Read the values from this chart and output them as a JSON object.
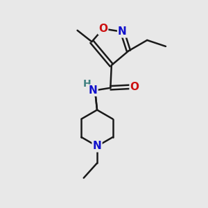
{
  "bg_color": "#e8e8e8",
  "bond_color": "#1a1a1a",
  "bond_width": 1.8,
  "atom_colors": {
    "N": "#1010cc",
    "O": "#cc1010",
    "H": "#408080",
    "C": "#1a1a1a"
  },
  "font_size_atom": 11,
  "figsize": [
    3.0,
    3.0
  ],
  "dpi": 100,
  "xlim": [
    0,
    10
  ],
  "ylim": [
    0,
    10
  ]
}
